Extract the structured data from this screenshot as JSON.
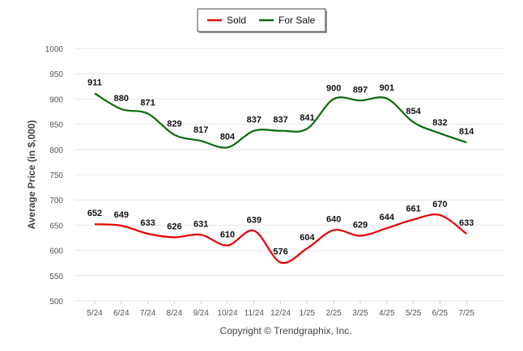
{
  "chart_data": {
    "type": "line",
    "title": "",
    "xlabel": "",
    "ylabel": "Average Price (in $,000)",
    "categories": [
      "5/24",
      "6/24",
      "7/24",
      "8/24",
      "9/24",
      "10/24",
      "11/24",
      "12/24",
      "1/25",
      "2/25",
      "3/25",
      "4/25",
      "5/25",
      "6/25",
      "7/25"
    ],
    "ylim": [
      500,
      1000
    ],
    "yticks": [
      500,
      550,
      600,
      650,
      700,
      750,
      800,
      850,
      900,
      950,
      1000
    ],
    "grid": true,
    "legend_position": "top-center",
    "series": [
      {
        "name": "Sold",
        "color": "#e60000",
        "values": [
          652,
          649,
          633,
          626,
          631,
          610,
          639,
          576,
          604,
          640,
          629,
          644,
          661,
          670,
          633
        ]
      },
      {
        "name": "For Sale",
        "color": "#0a6b0a",
        "values": [
          911,
          880,
          871,
          829,
          817,
          804,
          837,
          837,
          841,
          900,
          897,
          901,
          854,
          832,
          814
        ]
      }
    ]
  },
  "footer": {
    "copyright": "Copyright © Trendgraphix, Inc."
  }
}
